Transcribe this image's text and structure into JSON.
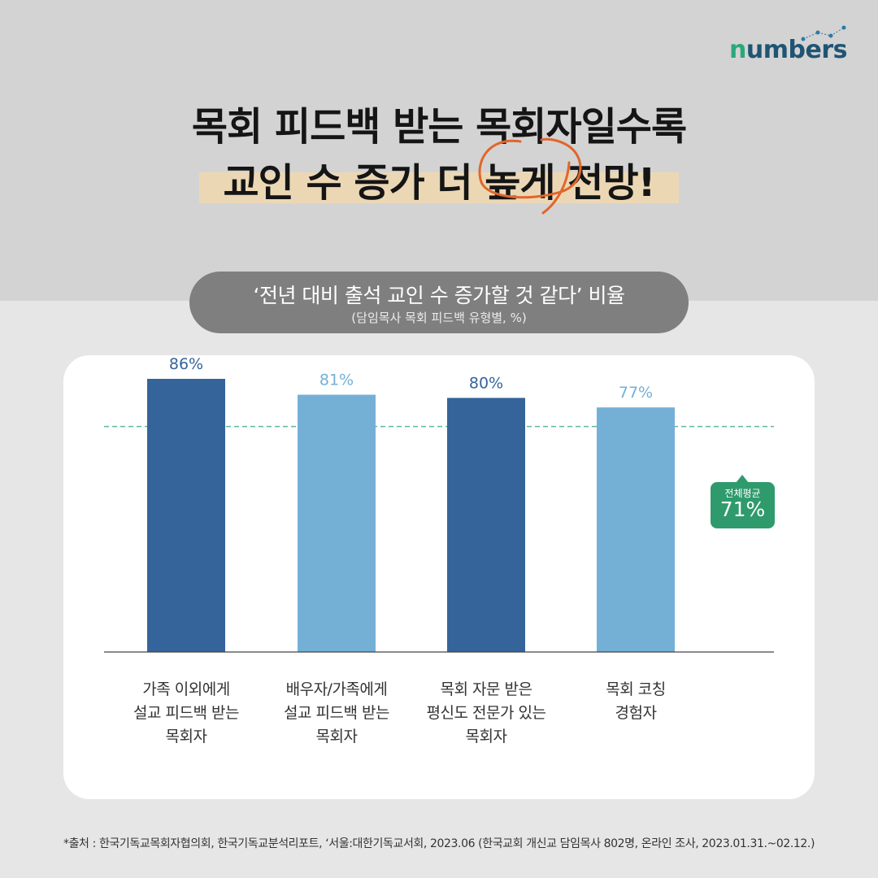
{
  "header": {
    "logo_text_prefix": "n",
    "logo_text_rest": "umbers",
    "title_line1": "목회 피드백 받는 목회자일수록",
    "title_line2": "교인 수 증가 더 높게 전망!"
  },
  "chart_header": {
    "title": "‘전년 대비 출석 교인 수 증가할 것 같다’ 비율",
    "subtitle": "(담임목사 목회 피드백 유형별, %)"
  },
  "chart_data": {
    "type": "bar",
    "categories": [
      [
        "가족 이외에게",
        "설교 피드백 받는",
        "목회자"
      ],
      [
        "배우자/가족에게",
        "설교 피드백 받는",
        "목회자"
      ],
      [
        "목회 자문 받은",
        "평신도 전문가 있는",
        "목회자"
      ],
      [
        "목회 코칭",
        "경험자"
      ]
    ],
    "values": [
      86,
      81,
      80,
      77
    ],
    "value_labels": [
      "86%",
      "81%",
      "80%",
      "77%"
    ],
    "bar_colors": [
      "#35649b",
      "#74b0d6",
      "#35649b",
      "#74b0d6"
    ],
    "ylim": [
      0,
      100
    ],
    "reference_line": {
      "value": 71,
      "label": "전체평균",
      "value_label": "71%",
      "color": "#2f9a6c"
    },
    "grid": false
  },
  "footer": {
    "source": "*출처 : 한국기독교목회자협의회, 한국기독교분석리포트, ‘서울:대한기독교서회, 2023.06 (한국교회 개신교 담임목사 802명, 온라인 조사, 2023.01.31.~02.12.)"
  },
  "colors": {
    "dark_bar": "#35649b",
    "light_bar": "#74b0d6",
    "accent_green": "#2f9a6c",
    "highlight": "#ecd7b5",
    "circle": "#e0662b"
  }
}
